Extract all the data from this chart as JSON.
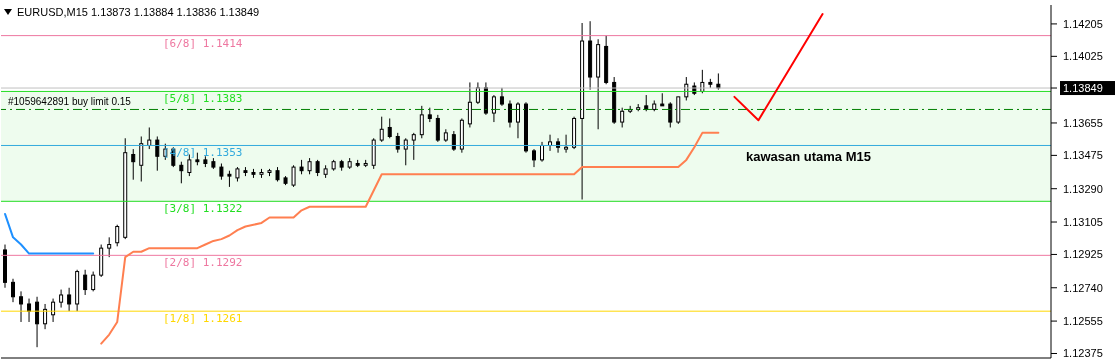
{
  "chart_data": {
    "type": "candlestick",
    "title": "EURUSD,M15 1.13873 1.13884 1.13836 1.13849",
    "color": "#000000",
    "categories": [
      null,
      null,
      null,
      null,
      null,
      null,
      null,
      null,
      null,
      null,
      null,
      null,
      null,
      null,
      null,
      null,
      null,
      null,
      null,
      null,
      null,
      null,
      null,
      null,
      null,
      null,
      null,
      null,
      null,
      null,
      null,
      null,
      null,
      null,
      null,
      null,
      null,
      null,
      null,
      null,
      null,
      null,
      null,
      null,
      null,
      null,
      null,
      null,
      null,
      null,
      null,
      null,
      null,
      null,
      null,
      null,
      null,
      null,
      null,
      null,
      null,
      null,
      null,
      null,
      null,
      null,
      null,
      null,
      null,
      null,
      null,
      null,
      null,
      null,
      null,
      null,
      null,
      null,
      null,
      null,
      null,
      null,
      null,
      null,
      null,
      null,
      null,
      null,
      null,
      null,
      null,
      null,
      null,
      null,
      null,
      null,
      null,
      null,
      null,
      null,
      null,
      null,
      null,
      null,
      null,
      null,
      null,
      null,
      null,
      null,
      null,
      null,
      null,
      null,
      null,
      null,
      null,
      null,
      null,
      null,
      null,
      null,
      null,
      null,
      null,
      null,
      null,
      null,
      null,
      null,
      null
    ],
    "ohlc": [
      [
        1.1295,
        1.1298,
        1.1274,
        1.1277
      ],
      [
        1.1277,
        1.1279,
        1.1266,
        1.1269
      ],
      [
        1.1269,
        1.1272,
        1.1255,
        1.1265
      ],
      [
        1.1265,
        1.1268,
        1.1255,
        1.1261
      ],
      [
        1.1266,
        1.1269,
        1.1241,
        1.1254
      ],
      [
        1.1254,
        1.1265,
        1.1251,
        1.1262
      ],
      [
        1.1259,
        1.1268,
        1.1255,
        1.1266
      ],
      [
        1.1266,
        1.1273,
        1.1263,
        1.127
      ],
      [
        1.127,
        1.1274,
        1.1261,
        1.1265
      ],
      [
        1.1265,
        1.1284,
        1.1261,
        1.1283
      ],
      [
        1.1281,
        1.1284,
        1.127,
        1.1273
      ],
      [
        1.1273,
        1.1283,
        1.1272,
        1.1281
      ],
      [
        1.1281,
        1.1298,
        1.128,
        1.1296
      ],
      [
        1.1296,
        1.1302,
        1.1291,
        1.1298
      ],
      [
        1.1299,
        1.1309,
        1.1297,
        1.1308
      ],
      [
        1.1302,
        1.1357,
        1.1301,
        1.1349
      ],
      [
        1.1348,
        1.1351,
        1.1334,
        1.1344
      ],
      [
        1.1342,
        1.1358,
        1.1333,
        1.1354
      ],
      [
        1.1353,
        1.1363,
        1.1351,
        1.1356
      ],
      [
        1.1356,
        1.1358,
        1.1339,
        1.1347
      ],
      [
        1.1347,
        1.1354,
        1.1345,
        1.1351
      ],
      [
        1.1351,
        1.1352,
        1.1341,
        1.1342
      ],
      [
        1.1342,
        1.1344,
        1.1332,
        1.1339
      ],
      [
        1.1338,
        1.1348,
        1.1336,
        1.1345
      ],
      [
        1.1345,
        1.1349,
        1.1342,
        1.1344
      ],
      [
        1.1345,
        1.1347,
        1.1341,
        1.1343
      ],
      [
        1.1344,
        1.1346,
        1.134,
        1.1341
      ],
      [
        1.1341,
        1.1343,
        1.1334,
        1.1336
      ],
      [
        1.1337,
        1.1339,
        1.133,
        1.1336
      ],
      [
        1.1335,
        1.1341,
        1.1333,
        1.134
      ],
      [
        1.1339,
        1.1341,
        1.1336,
        1.1338
      ],
      [
        1.1338,
        1.134,
        1.1335,
        1.1337
      ],
      [
        1.1337,
        1.134,
        1.1335,
        1.1338
      ],
      [
        1.1338,
        1.134,
        1.1336,
        1.1339
      ],
      [
        1.1339,
        1.1341,
        1.1333,
        1.1334
      ],
      [
        1.1335,
        1.1336,
        1.1331,
        1.1332
      ],
      [
        1.1331,
        1.1342,
        1.133,
        1.1341
      ],
      [
        1.1341,
        1.1345,
        1.1337,
        1.1339
      ],
      [
        1.1339,
        1.1346,
        1.1337,
        1.1344
      ],
      [
        1.1344,
        1.1345,
        1.1336,
        1.1338
      ],
      [
        1.1337,
        1.1342,
        1.1335,
        1.134
      ],
      [
        1.134,
        1.1345,
        1.1339,
        1.1344
      ],
      [
        1.1344,
        1.1345,
        1.1339,
        1.1341
      ],
      [
        1.1341,
        1.1346,
        1.134,
        1.1344
      ],
      [
        1.1343,
        1.1345,
        1.1341,
        1.1342
      ],
      [
        1.1342,
        1.1345,
        1.1341,
        1.1343
      ],
      [
        1.1342,
        1.1357,
        1.134,
        1.1356
      ],
      [
        1.1356,
        1.1369,
        1.1355,
        1.1362
      ],
      [
        1.1363,
        1.1368,
        1.1357,
        1.1358
      ],
      [
        1.1358,
        1.136,
        1.1349,
        1.1351
      ],
      [
        1.1351,
        1.1357,
        1.1342,
        1.1356
      ],
      [
        1.1356,
        1.136,
        1.1345,
        1.1359
      ],
      [
        1.1359,
        1.1375,
        1.1357,
        1.137
      ],
      [
        1.137,
        1.1374,
        1.1366,
        1.1368
      ],
      [
        1.1368,
        1.137,
        1.1355,
        1.1356
      ],
      [
        1.1356,
        1.1362,
        1.1355,
        1.136
      ],
      [
        1.1359,
        1.1361,
        1.135,
        1.1351
      ],
      [
        1.1351,
        1.1368,
        1.1349,
        1.1367
      ],
      [
        1.1365,
        1.1388,
        1.1363,
        1.1377
      ],
      [
        1.1377,
        1.1388,
        1.1376,
        1.1385
      ],
      [
        1.1385,
        1.1388,
        1.137,
        1.1371
      ],
      [
        1.1371,
        1.1381,
        1.1366,
        1.138
      ],
      [
        1.138,
        1.1385,
        1.1375,
        1.1376
      ],
      [
        1.1376,
        1.1378,
        1.1363,
        1.1366
      ],
      [
        1.1366,
        1.1377,
        1.1357,
        1.1376
      ],
      [
        1.1376,
        1.1377,
        1.1349,
        1.135
      ],
      [
        1.135,
        1.1351,
        1.1341,
        1.1345
      ],
      [
        1.1345,
        1.1355,
        1.1344,
        1.1353
      ],
      [
        1.1353,
        1.1359,
        1.135,
        1.1355
      ],
      [
        1.1355,
        1.1357,
        1.1349,
        1.1352
      ],
      [
        1.1351,
        1.1359,
        1.1349,
        1.1352
      ],
      [
        1.1352,
        1.1369,
        1.1351,
        1.1368
      ],
      [
        1.1368,
        1.1421,
        1.1323,
        1.1411
      ],
      [
        1.1411,
        1.1422,
        1.1384,
        1.1391
      ],
      [
        1.1391,
        1.1412,
        1.1362,
        1.1409
      ],
      [
        1.1408,
        1.1414,
        1.1387,
        1.1388
      ],
      [
        1.1388,
        1.1391,
        1.1365,
        1.1366
      ],
      [
        1.1366,
        1.1374,
        1.1363,
        1.1372
      ],
      [
        1.1372,
        1.1375,
        1.1371,
        1.1373
      ],
      [
        1.1373,
        1.1376,
        1.1372,
        1.1374
      ],
      [
        1.1375,
        1.1381,
        1.1372,
        1.1373
      ],
      [
        1.1373,
        1.1378,
        1.1372,
        1.1376
      ],
      [
        1.1376,
        1.1382,
        1.1375,
        1.1375
      ],
      [
        1.1376,
        1.1377,
        1.1363,
        1.1366
      ],
      [
        1.1366,
        1.138,
        1.1365,
        1.138
      ],
      [
        1.138,
        1.1391,
        1.1378,
        1.1387
      ],
      [
        1.1386,
        1.1388,
        1.1381,
        1.1382
      ],
      [
        1.1383,
        1.1395,
        1.1382,
        1.1388
      ],
      [
        1.1388,
        1.139,
        1.1385,
        1.1387
      ],
      [
        1.1387,
        1.1393,
        1.1384,
        1.1385
      ],
      null,
      null,
      null,
      null,
      null,
      null,
      null,
      null,
      null,
      null,
      null,
      null,
      null,
      null,
      null,
      null,
      null,
      null,
      null,
      null,
      null,
      null,
      null,
      null,
      null,
      null,
      null,
      null,
      null,
      null,
      null,
      null,
      null,
      null,
      null,
      null,
      null,
      null,
      null,
      null,
      null
    ],
    "series": [
      {
        "type": "line",
        "color": "#ff7f50",
        "values": [
          null,
          null,
          null,
          null,
          null,
          null,
          null,
          null,
          null,
          null,
          null,
          null,
          1.1243,
          1.1248,
          1.1255,
          1.1291,
          1.1294,
          1.1294,
          1.1296,
          1.1296,
          1.1296,
          1.1296,
          1.1296,
          1.1296,
          1.1296,
          1.1298,
          1.13,
          1.1301,
          1.1303,
          1.1306,
          1.1308,
          1.1309,
          1.131,
          1.1313,
          1.1313,
          1.1313,
          1.1313,
          1.1317,
          1.1319,
          1.1319,
          1.1319,
          1.1319,
          1.1319,
          1.1319,
          1.1319,
          1.1319,
          1.1328,
          1.1337,
          1.1337,
          1.1337,
          1.1337,
          1.1337,
          1.1337,
          1.1337,
          1.1337,
          1.1337,
          1.1337,
          1.1337,
          1.1337,
          1.1337,
          1.1337,
          1.1337,
          1.1337,
          1.1337,
          1.1337,
          1.1337,
          1.1337,
          1.1337,
          1.1337,
          1.1337,
          1.1337,
          1.1337,
          1.1341,
          1.1341,
          1.1341,
          1.1341,
          1.1341,
          1.1341,
          1.1341,
          1.1341,
          1.1341,
          1.1341,
          1.1341,
          1.1341,
          1.1341,
          1.1345,
          1.1352,
          1.136,
          1.136,
          1.136,
          null,
          null,
          null,
          null,
          null,
          null,
          null,
          null,
          null,
          null,
          null,
          null,
          null,
          null,
          null,
          null,
          null,
          null,
          null,
          null,
          null,
          null,
          null,
          null,
          null,
          null,
          null,
          null,
          null,
          null,
          null,
          null,
          null,
          null,
          null,
          null,
          null,
          null,
          null,
          null,
          null
        ]
      },
      {
        "type": "line",
        "color": "#1e90ff",
        "values": [
          1.1315,
          1.1302,
          1.1298,
          1.1293,
          1.1293,
          1.1293,
          1.1293,
          1.1293,
          1.1293,
          1.1293,
          1.1293,
          1.1293,
          null,
          null,
          null,
          null,
          null,
          null,
          null,
          null,
          null,
          null,
          null,
          null,
          null,
          null,
          null,
          null,
          null,
          null,
          null,
          null,
          null,
          null,
          null,
          null,
          null,
          null,
          null,
          null,
          null,
          null,
          null,
          null,
          null,
          null,
          null,
          null,
          null,
          null,
          null,
          null,
          null,
          null,
          null,
          null,
          null,
          null,
          null,
          null,
          null,
          null,
          null,
          null,
          null,
          null,
          null,
          null,
          null,
          null,
          null,
          null,
          null,
          null,
          null,
          null,
          null,
          null,
          null,
          null,
          null,
          null,
          null,
          null,
          null,
          null,
          null,
          null,
          null,
          null,
          null,
          null,
          null,
          null,
          null,
          null,
          null,
          null,
          null,
          null,
          null,
          null,
          null,
          null,
          null,
          null,
          null,
          null,
          null,
          null,
          null,
          null,
          null,
          null,
          null,
          null,
          null,
          null,
          null,
          null,
          null,
          null,
          null,
          null,
          null,
          null,
          null,
          null,
          null,
          null,
          null
        ]
      },
      {
        "type": "line",
        "color": "#ff0000",
        "values": [
          null,
          null,
          null,
          null,
          null,
          null,
          null,
          null,
          null,
          null,
          null,
          null,
          null,
          null,
          null,
          null,
          null,
          null,
          null,
          null,
          null,
          null,
          null,
          null,
          null,
          null,
          null,
          null,
          null,
          null,
          null,
          null,
          null,
          null,
          null,
          null,
          null,
          null,
          null,
          null,
          null,
          null,
          null,
          null,
          null,
          null,
          null,
          null,
          null,
          null,
          null,
          null,
          null,
          null,
          null,
          null,
          null,
          null,
          null,
          null,
          null,
          null,
          null,
          null,
          null,
          null,
          null,
          null,
          null,
          null,
          null,
          null,
          null,
          null,
          null,
          null,
          null,
          null,
          null,
          null,
          null,
          null,
          null,
          null,
          null,
          null,
          null,
          null,
          null,
          null,
          null,
          1.138,
          null,
          null,
          1.1367,
          null,
          null,
          null,
          null,
          null,
          null,
          null,
          1.1426,
          null,
          null,
          null,
          null,
          null,
          null,
          null,
          null,
          null,
          null,
          null,
          null,
          null,
          null,
          null,
          null,
          null,
          null,
          null,
          null,
          null,
          null,
          null,
          null,
          null,
          null,
          null,
          null
        ]
      }
    ],
    "ylim": [
      1.1235,
      1.1431
    ],
    "yticks": [
      1.12375,
      1.12555,
      {
        "value": 1.1274,
        "label": "1.12740"
      },
      1.12925,
      1.13105,
      {
        "value": 1.1329,
        "label": "1.13290"
      },
      1.13475,
      1.13655,
      1.13849,
      1.14025,
      1.14205
    ],
    "tick_labels": "y",
    "bands": [
      {
        "axis": "y",
        "from": 1.1322,
        "to": 1.1383,
        "color": "#eefcee"
      }
    ],
    "ref_lines": [
      {
        "axis": "y",
        "value": 1.1414,
        "label": "[6/8] 1.1414",
        "color": "#ee77a0"
      },
      {
        "axis": "y",
        "value": 1.1383,
        "label": "[5/8] 1.1383",
        "color": "#22dd22"
      },
      {
        "axis": "y",
        "value": 1.13849,
        "color": "#c0c0c0"
      },
      {
        "axis": "y",
        "value": 1.1373,
        "label": "#1059642891 buy limit 0.15",
        "color": "#008000",
        "line_style": "dashed"
      },
      {
        "axis": "y",
        "value": 1.1353,
        "label": "[4/8] 1.1353",
        "color": "#33aadd"
      },
      {
        "axis": "y",
        "value": 1.1322,
        "label": "[3/8] 1.1322",
        "color": "#22dd22"
      },
      {
        "axis": "y",
        "value": 1.1292,
        "label": "[2/8] 1.1292",
        "color": "#ee77a0"
      },
      {
        "axis": "y",
        "value": 1.1261,
        "label": "[1/8] 1.1261",
        "color": "#ffd700"
      }
    ],
    "annotations": [
      "kawasan utama M15"
    ]
  }
}
